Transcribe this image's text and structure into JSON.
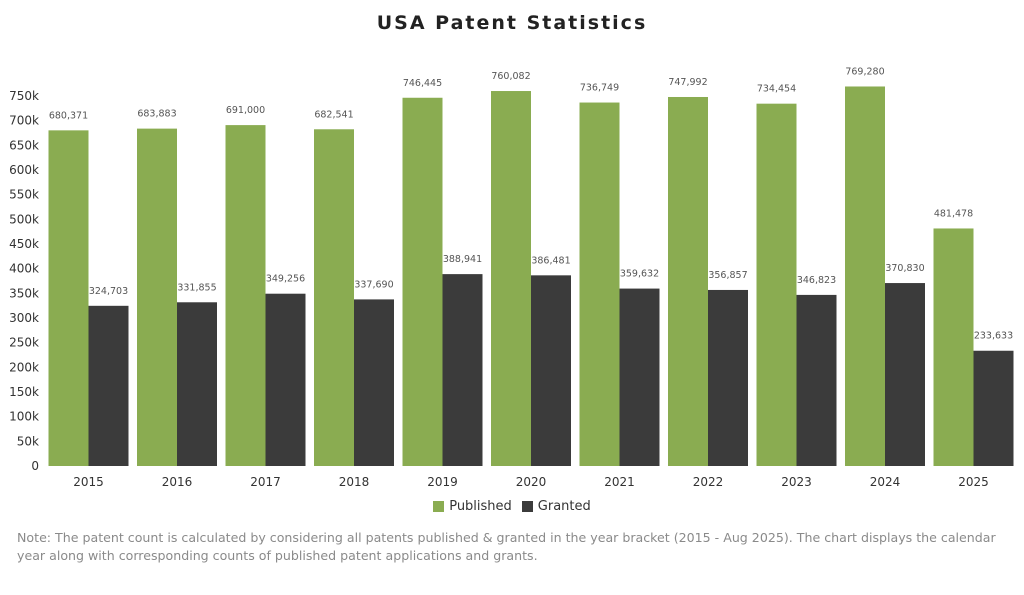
{
  "chart_data": {
    "type": "bar",
    "title": "USA Patent Statistics",
    "categories": [
      "2015",
      "2016",
      "2017",
      "2018",
      "2019",
      "2020",
      "2021",
      "2022",
      "2023",
      "2024",
      "2025"
    ],
    "series": [
      {
        "name": "Published",
        "color": "#8aac51",
        "values": [
          680371,
          683883,
          691000,
          682541,
          746445,
          760082,
          736749,
          747992,
          734454,
          769280,
          481478
        ]
      },
      {
        "name": "Granted",
        "color": "#3b3b3b",
        "values": [
          324703,
          331855,
          349256,
          337690,
          388941,
          386481,
          359632,
          356857,
          346823,
          370830,
          233633
        ]
      }
    ],
    "data_labels": {
      "Published": [
        "680,371",
        "683,883",
        "691,000",
        "682,541",
        "746,445",
        "760,082",
        "736,749",
        "747,992",
        "734,454",
        "769,280",
        "481,478"
      ],
      "Granted": [
        "324,703",
        "331,855",
        "349,256",
        "337,690",
        "388,941",
        "386,481",
        "359,632",
        "356,857",
        "346,823",
        "370,830",
        "233,633"
      ]
    },
    "yticks": [
      "0",
      "50k",
      "100k",
      "150k",
      "200k",
      "250k",
      "300k",
      "350k",
      "400k",
      "450k",
      "500k",
      "550k",
      "600k",
      "650k",
      "700k",
      "750k"
    ],
    "ylim": [
      0,
      750000
    ],
    "xlabel": "",
    "ylabel": "",
    "grid": false,
    "legend_placement": "bottom"
  },
  "note": "Note: The patent count is calculated by considering all patents published & granted in the year bracket (2015 - Aug 2025). The chart displays the calendar year along with corresponding counts of published patent applications and grants."
}
